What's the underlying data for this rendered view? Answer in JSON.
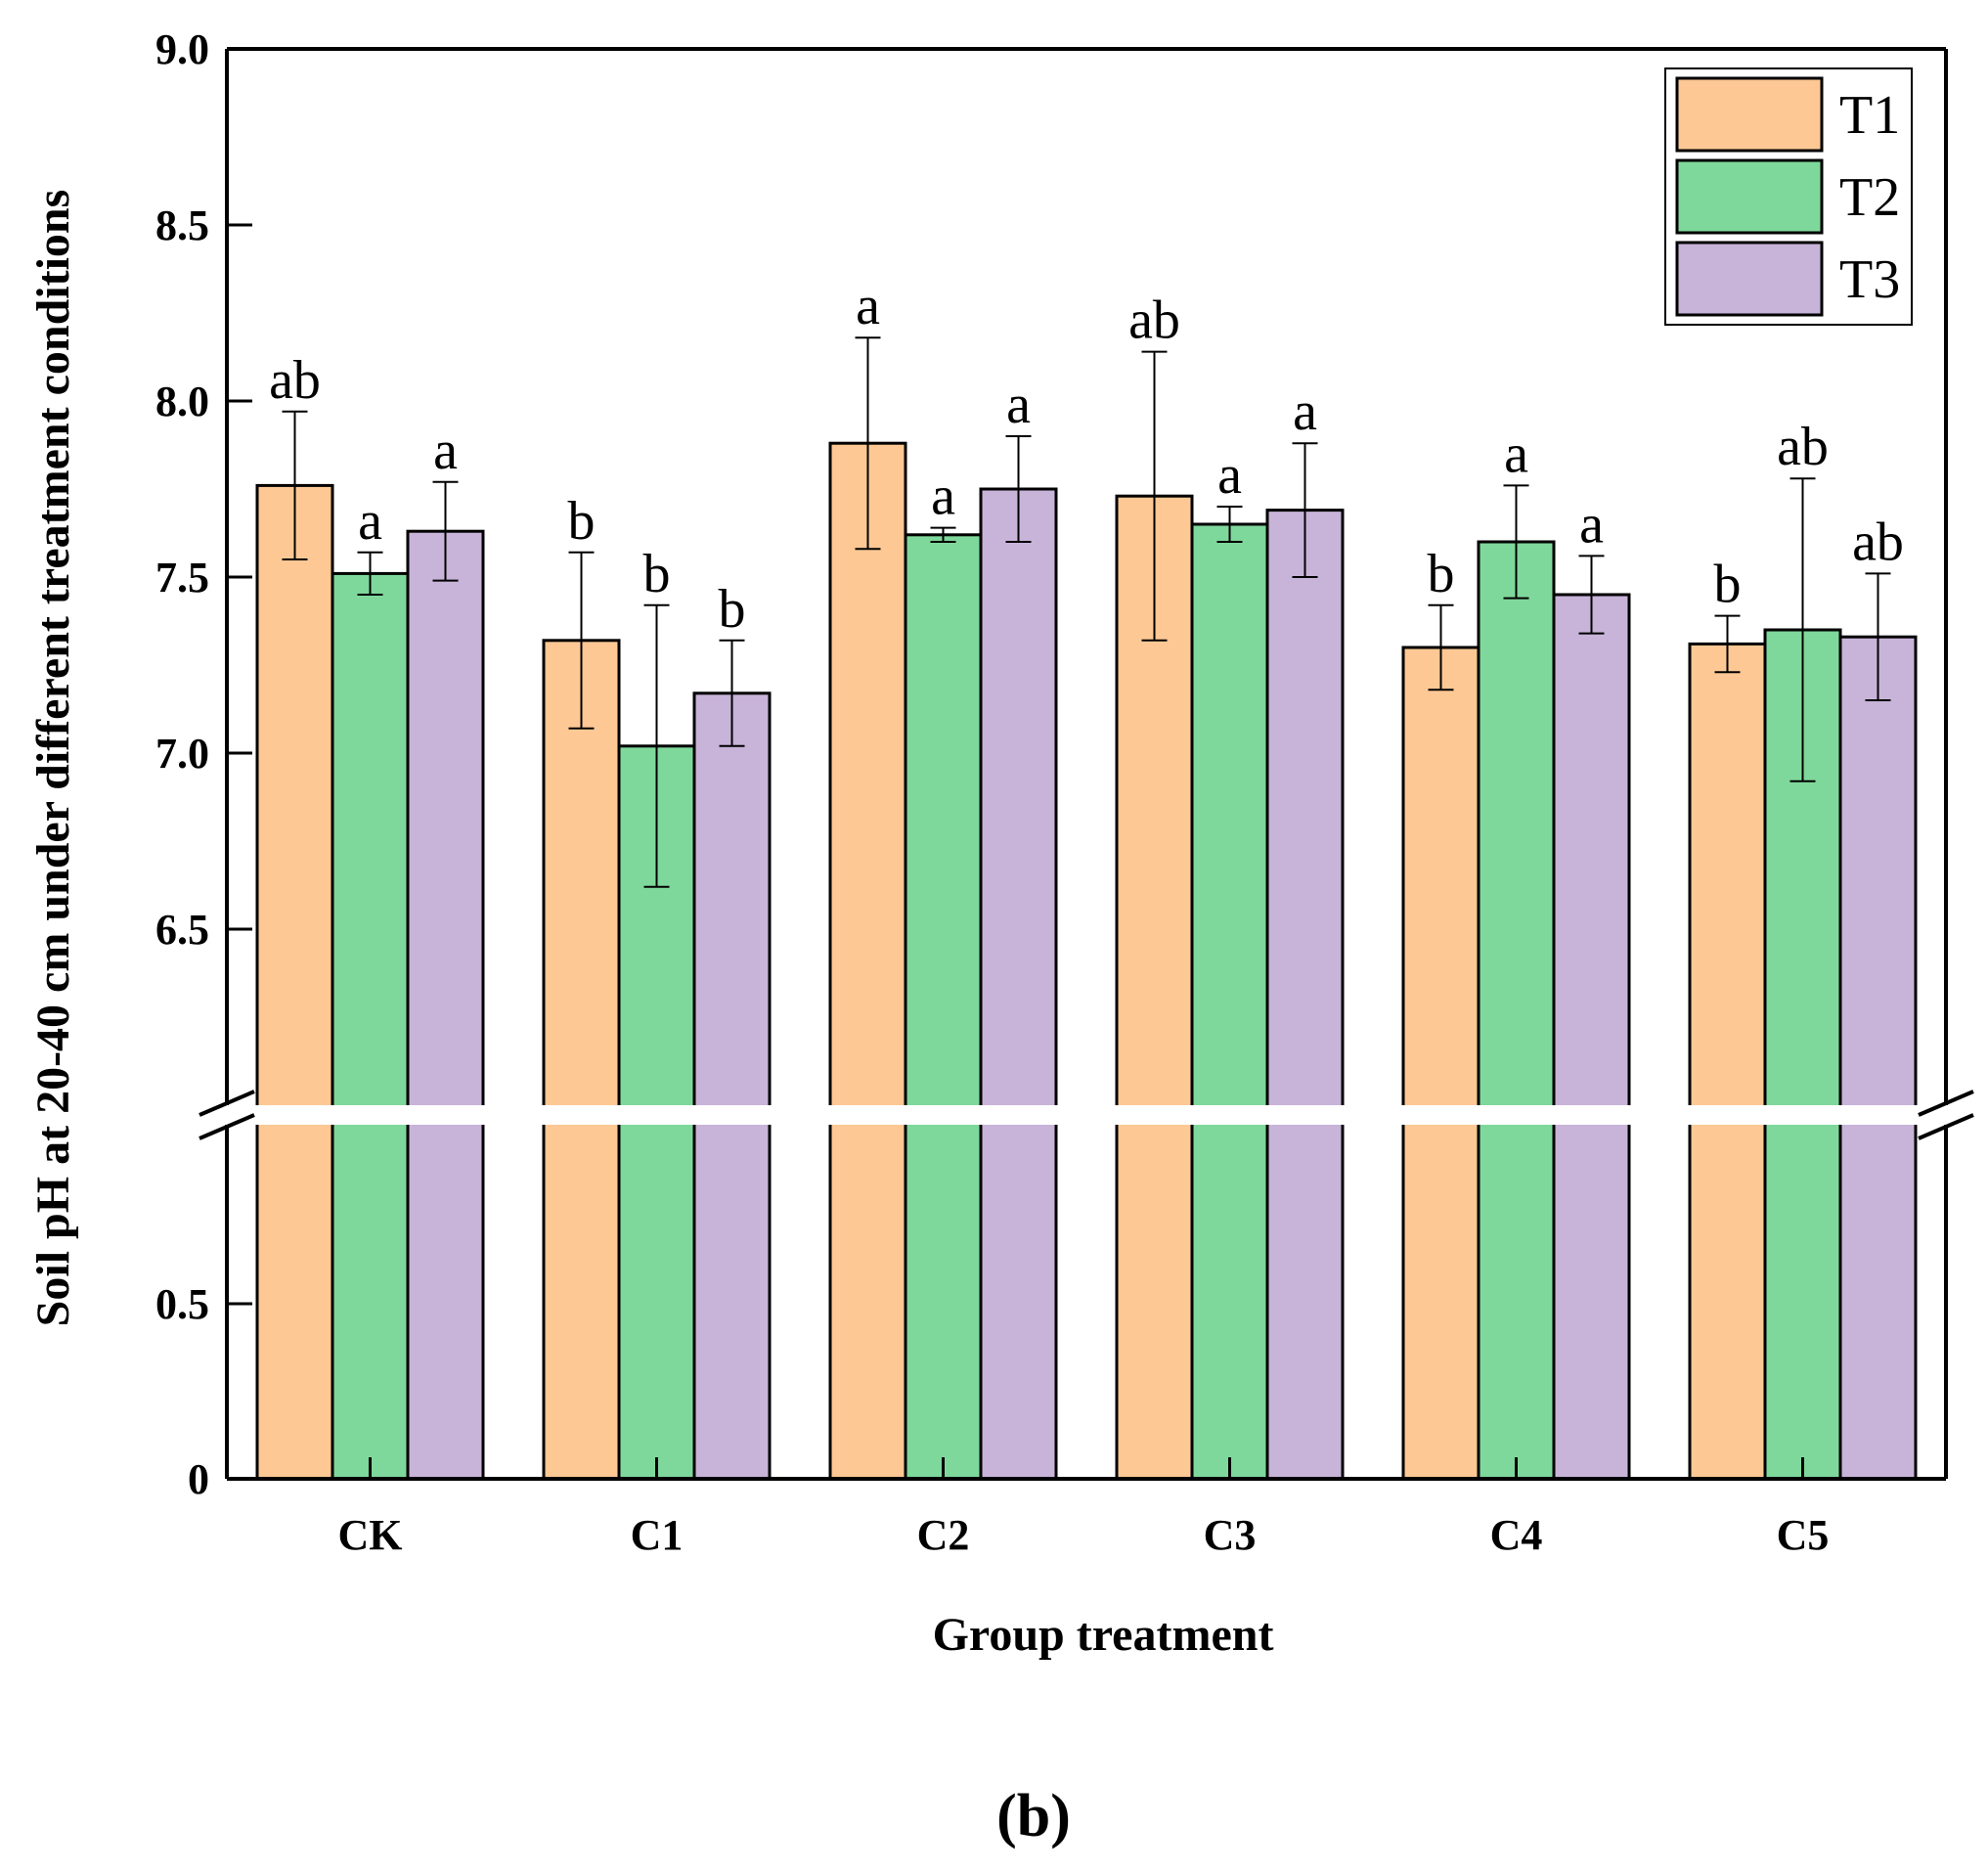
{
  "chart_data": {
    "type": "bar",
    "title": "",
    "xlabel": "Group treatment",
    "ylabel": "Soil pH at 20-40 cm under different treatment conditions",
    "panel_label": "(b)",
    "categories": [
      "CK",
      "C1",
      "C2",
      "C3",
      "C4",
      "C5"
    ],
    "series": [
      {
        "name": "T1",
        "color": "#FDC894",
        "values": [
          7.76,
          7.32,
          7.88,
          7.73,
          7.3,
          7.31
        ],
        "errors": [
          0.21,
          0.25,
          0.3,
          0.41,
          0.12,
          0.08
        ],
        "labels": [
          "ab",
          "b",
          "a",
          "ab",
          "b",
          "b"
        ]
      },
      {
        "name": "T2",
        "color": "#7FD89B",
        "values": [
          7.51,
          7.02,
          7.62,
          7.65,
          7.6,
          7.35
        ],
        "errors": [
          0.06,
          0.4,
          0.02,
          0.05,
          0.16,
          0.43
        ],
        "labels": [
          "a",
          "b",
          "a",
          "a",
          "a",
          "ab"
        ]
      },
      {
        "name": "T3",
        "color": "#C8B3D9",
        "values": [
          7.63,
          7.17,
          7.75,
          7.69,
          7.45,
          7.33
        ],
        "errors": [
          0.14,
          0.15,
          0.15,
          0.19,
          0.11,
          0.18
        ],
        "labels": [
          "a",
          "b",
          "a",
          "a",
          "a",
          "ab"
        ]
      }
    ],
    "y_axis": {
      "break": true,
      "lower_segment": {
        "range": [
          0,
          1.0
        ],
        "ticks": [
          0,
          0.5
        ],
        "tick_labels": [
          "0",
          "0.5"
        ]
      },
      "upper_segment": {
        "range": [
          6.0,
          9.0
        ],
        "ticks": [
          6.5,
          7.0,
          7.5,
          8.0,
          8.5,
          9.0
        ],
        "tick_labels": [
          "6.5",
          "7.0",
          "7.5",
          "8.0",
          "8.5",
          "9.0"
        ]
      }
    },
    "legend_position": "top-right",
    "grid": false
  }
}
